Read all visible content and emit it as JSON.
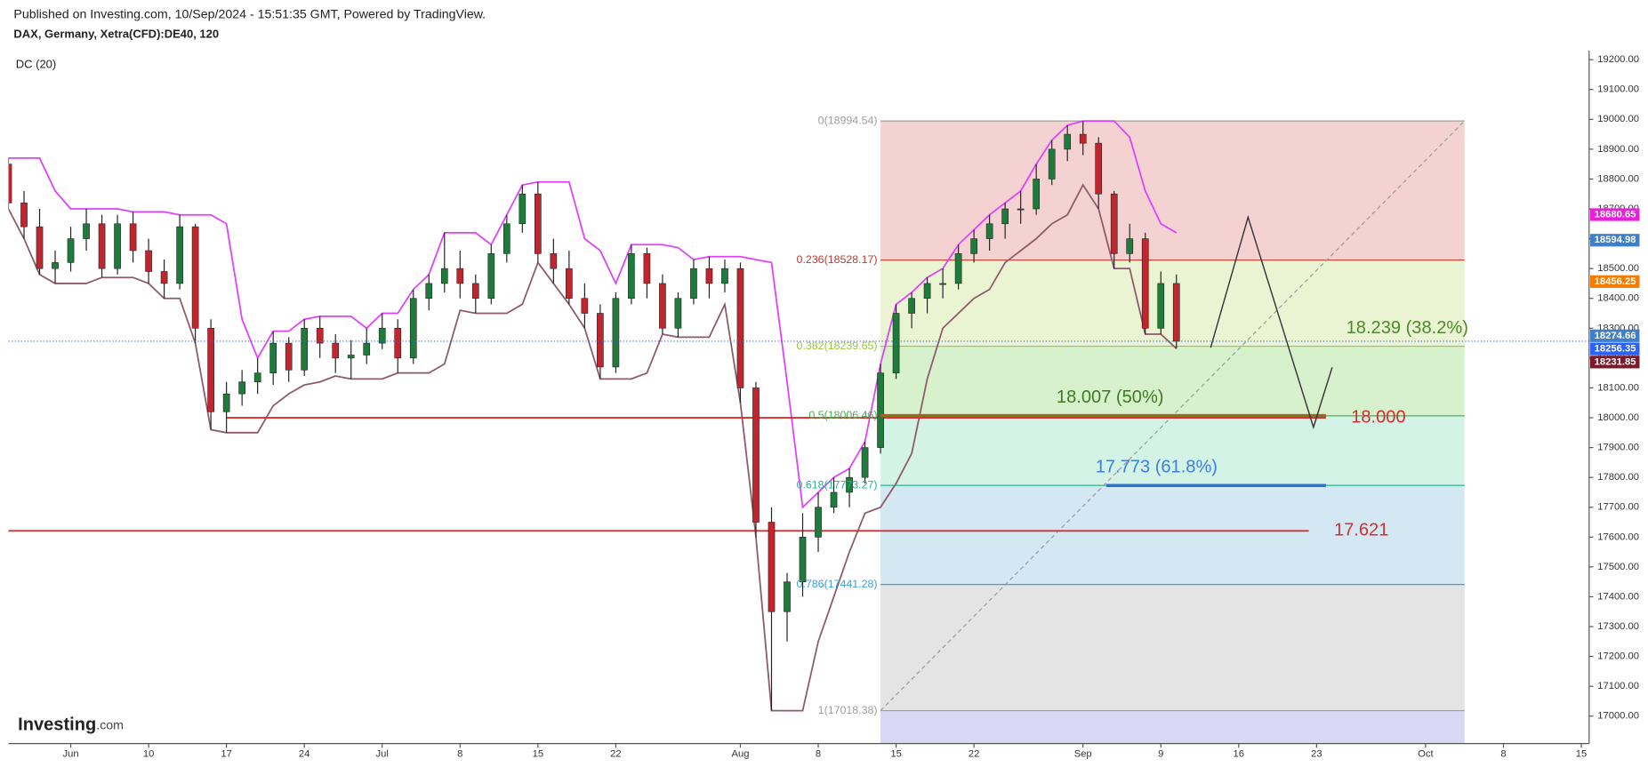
{
  "header": {
    "published": "Published on Investing.com, 10/Sep/2024 - 15:51:35 GMT, Powered by TradingView.",
    "symbol": "DAX, Germany, Xetra(CFD):DE40, 120",
    "indicator": "DC (20)"
  },
  "logo": {
    "main": "Investing",
    "suffix": ".com"
  },
  "chart_data": {
    "type": "candlestick",
    "x": [
      -4,
      -3,
      -2,
      -1,
      0,
      1,
      2,
      3,
      4,
      5,
      6,
      7,
      8,
      9,
      10,
      11,
      12,
      13,
      14,
      15,
      16,
      17,
      18,
      19,
      20,
      21,
      22,
      23,
      24,
      25,
      26,
      27,
      28,
      29,
      30,
      31,
      32,
      33,
      34,
      35,
      36,
      37,
      38,
      39,
      40,
      41,
      42,
      43,
      44,
      45,
      46,
      47,
      48,
      49,
      50,
      51,
      52,
      53,
      54,
      55,
      56,
      57,
      58,
      59,
      60,
      61,
      62,
      63,
      64,
      65,
      66,
      67,
      68,
      69,
      70,
      71
    ],
    "open": [
      18850,
      18720,
      18640,
      18500,
      18520,
      18600,
      18650,
      18500,
      18650,
      18560,
      18490,
      18450,
      18640,
      18300,
      18020,
      18080,
      18120,
      18150,
      18250,
      18160,
      18300,
      18250,
      18200,
      18210,
      18250,
      18300,
      18200,
      18400,
      18450,
      18500,
      18450,
      18400,
      18550,
      18650,
      18750,
      18550,
      18500,
      18400,
      18350,
      18170,
      18400,
      18550,
      18450,
      18300,
      18400,
      18500,
      18450,
      18500,
      18100,
      17650,
      17350,
      17450,
      17600,
      17700,
      17750,
      17800,
      17900,
      18150,
      18350,
      18400,
      18450,
      18450,
      18550,
      18600,
      18650,
      18700,
      18700,
      18800,
      18900,
      18950,
      18920,
      18750,
      18550,
      18600,
      18300,
      18450
    ],
    "high": [
      18870,
      18760,
      18700,
      18560,
      18640,
      18700,
      18680,
      18680,
      18690,
      18600,
      18530,
      18680,
      18650,
      18330,
      18120,
      18160,
      18200,
      18290,
      18270,
      18330,
      18340,
      18280,
      18260,
      18300,
      18350,
      18330,
      18430,
      18480,
      18620,
      18560,
      18480,
      18580,
      18680,
      18780,
      18790,
      18600,
      18560,
      18450,
      18380,
      18420,
      18580,
      18570,
      18480,
      18420,
      18530,
      18540,
      18530,
      18520,
      18120,
      17700,
      17480,
      17680,
      17750,
      17800,
      17830,
      17920,
      18180,
      18380,
      18420,
      18470,
      18500,
      18580,
      18630,
      18680,
      18720,
      18760,
      18850,
      18930,
      18980,
      18994.54,
      18940,
      18760,
      18650,
      18620,
      18490,
      18480
    ],
    "low": [
      18700,
      18600,
      18480,
      18450,
      18490,
      18560,
      18470,
      18480,
      18520,
      18450,
      18400,
      18430,
      18250,
      17960,
      17950,
      18040,
      18080,
      18110,
      18120,
      18140,
      18200,
      18150,
      18130,
      18180,
      18230,
      18150,
      18180,
      18360,
      18420,
      18400,
      18350,
      18380,
      18520,
      18620,
      18520,
      18450,
      18380,
      18300,
      18130,
      18150,
      18380,
      18400,
      18280,
      18270,
      18380,
      18400,
      18420,
      18050,
      17600,
      17018.38,
      17250,
      17400,
      17550,
      17680,
      17700,
      17780,
      17880,
      18130,
      18300,
      18350,
      18400,
      18430,
      18520,
      18560,
      18600,
      18650,
      18680,
      18780,
      18860,
      18880,
      18700,
      18500,
      18520,
      18280,
      18280,
      18231.85
    ],
    "close": [
      18720,
      18640,
      18500,
      18520,
      18600,
      18650,
      18500,
      18650,
      18560,
      18490,
      18450,
      18640,
      18300,
      18020,
      18080,
      18120,
      18150,
      18250,
      18160,
      18300,
      18250,
      18200,
      18210,
      18250,
      18300,
      18200,
      18400,
      18450,
      18500,
      18450,
      18400,
      18550,
      18650,
      18750,
      18550,
      18500,
      18400,
      18350,
      18170,
      18400,
      18550,
      18450,
      18300,
      18400,
      18500,
      18450,
      18500,
      18100,
      17650,
      17350,
      17450,
      17600,
      17700,
      17750,
      17800,
      17900,
      18150,
      18350,
      18400,
      18450,
      18450,
      18550,
      18600,
      18650,
      18700,
      18700,
      18800,
      18900,
      18950,
      18920,
      18750,
      18550,
      18600,
      18300,
      18450,
      18256.35
    ],
    "up_color": "#1e7b3c",
    "down_color": "#c0262d",
    "xlim": [
      -4,
      97.5
    ],
    "xticks": [
      {
        "value": 0,
        "label": "Jun"
      },
      {
        "value": 5,
        "label": "10"
      },
      {
        "value": 10,
        "label": "17"
      },
      {
        "value": 15,
        "label": "24"
      },
      {
        "value": 20,
        "label": "Jul"
      },
      {
        "value": 25,
        "label": "8"
      },
      {
        "value": 30,
        "label": "15"
      },
      {
        "value": 35,
        "label": "22"
      },
      {
        "value": 43,
        "label": "Aug"
      },
      {
        "value": 48,
        "label": "8"
      },
      {
        "value": 53,
        "label": "15"
      },
      {
        "value": 58,
        "label": "22"
      },
      {
        "value": 65,
        "label": "Sep"
      },
      {
        "value": 70,
        "label": "9"
      },
      {
        "value": 75,
        "label": "16"
      },
      {
        "value": 80,
        "label": "23"
      },
      {
        "value": 87,
        "label": "Oct"
      },
      {
        "value": 92,
        "label": "8"
      },
      {
        "value": 97,
        "label": "15"
      }
    ],
    "ylim": [
      16908,
      19231
    ],
    "yticks": [
      {
        "value": 17000,
        "label": "17000.00"
      },
      {
        "value": 17100,
        "label": "17100.00"
      },
      {
        "value": 17200,
        "label": "17200.00"
      },
      {
        "value": 17300,
        "label": "17300.00"
      },
      {
        "value": 17400,
        "label": "17400.00"
      },
      {
        "value": 17500,
        "label": "17500.00"
      },
      {
        "value": 17600,
        "label": "17600.00"
      },
      {
        "value": 17700,
        "label": "17700.00"
      },
      {
        "value": 17800,
        "label": "17800.00"
      },
      {
        "value": 17900,
        "label": "17900.00"
      },
      {
        "value": 18000,
        "label": "18000.00"
      },
      {
        "value": 18100,
        "label": "18100.00"
      },
      {
        "value": 18200,
        "label": "18200.00"
      },
      {
        "value": 18300,
        "label": "18300.00"
      },
      {
        "value": 18400,
        "label": "18400.00"
      },
      {
        "value": 18500,
        "label": "18500.00"
      },
      {
        "value": 18600,
        "label": "18600.00"
      },
      {
        "value": 18700,
        "label": "18700.00"
      },
      {
        "value": 18800,
        "label": "18800.00"
      },
      {
        "value": 18900,
        "label": "18900.00"
      },
      {
        "value": 19000,
        "label": "19000.00"
      },
      {
        "value": 19100,
        "label": "19100.00"
      },
      {
        "value": 19200,
        "label": "19200.00"
      }
    ],
    "channel": {
      "upper": [
        18870,
        18870,
        18870,
        18760,
        18700,
        18700,
        18700,
        18700,
        18690,
        18690,
        18690,
        18680,
        18680,
        18680,
        18650,
        18330,
        18200,
        18290,
        18290,
        18330,
        18340,
        18340,
        18340,
        18300,
        18350,
        18350,
        18430,
        18480,
        18620,
        18620,
        18620,
        18580,
        18680,
        18780,
        18790,
        18790,
        18790,
        18600,
        18560,
        18450,
        18580,
        18580,
        18580,
        18570,
        18530,
        18540,
        18540,
        18540,
        18530,
        18520,
        18120,
        17700,
        17750,
        17800,
        17830,
        17920,
        18180,
        18380,
        18420,
        18470,
        18500,
        18580,
        18630,
        18680,
        18720,
        18760,
        18850,
        18930,
        18980,
        18994.54,
        18994.54,
        18994.54,
        18940,
        18760,
        18650,
        18620
      ],
      "lower": [
        18700,
        18600,
        18480,
        18450,
        18450,
        18450,
        18470,
        18470,
        18470,
        18450,
        18400,
        18400,
        18250,
        17960,
        17950,
        17950,
        17950,
        18040,
        18080,
        18110,
        18120,
        18140,
        18130,
        18130,
        18130,
        18150,
        18150,
        18150,
        18180,
        18360,
        18350,
        18350,
        18350,
        18380,
        18520,
        18450,
        18380,
        18300,
        18130,
        18130,
        18130,
        18150,
        18280,
        18270,
        18270,
        18270,
        18380,
        18050,
        17600,
        17018.38,
        17018.38,
        17018.38,
        17250,
        17400,
        17550,
        17680,
        17700,
        17780,
        17880,
        18130,
        18300,
        18350,
        18400,
        18430,
        18520,
        18560,
        18600,
        18650,
        18680,
        18780,
        18700,
        18500,
        18500,
        18280,
        18280,
        18231.85
      ],
      "upper_color": "#e040fb",
      "lower_color": "#8d5a6a"
    },
    "fib": {
      "x": [
        52,
        89.5
      ],
      "levels": [
        {
          "value": 18994.54,
          "label": "0(18994.54)",
          "color": "#9e9e9e",
          "fill": "#f4d2d2"
        },
        {
          "value": 18528.17,
          "label": "0.236(18528.17)",
          "color": "#c0392b",
          "fill": "#eaf4d3"
        },
        {
          "value": 18239.65,
          "label": "0.382(18239.65)",
          "color": "#9bc53d",
          "fill": "#d7f1cd"
        },
        {
          "value": 18006.46,
          "label": "0.5(18006.46)",
          "color": "#4caf50",
          "fill": "#d3f3e6"
        },
        {
          "value": 17773.27,
          "label": "0.618(17773.27)",
          "color": "#26b58f",
          "fill": "#d4e8f3"
        },
        {
          "value": 17441.28,
          "label": "0.786(17441.28)",
          "color": "#3d9fd6",
          "fill": "#e4e4e4"
        },
        {
          "value": 17018.38,
          "label": "1(17018.38)",
          "color": "#9e9e9e",
          "fill": "#d8d8f4"
        }
      ]
    },
    "hlines": [
      {
        "value": 18000,
        "label": "18.000",
        "x": [
          10,
          80.6
        ],
        "color": "#d32f2f"
      },
      {
        "value": 17621,
        "label": "17.621",
        "x": [
          -4,
          79.5
        ],
        "color": "#d32f2f"
      }
    ],
    "notes": [
      {
        "value": 18239,
        "label": "18.239 (38.2%)",
        "x": 81.9,
        "color": "#4a8a2a"
      },
      {
        "value": 18007,
        "label": "18.007 (50%)",
        "x": 63.3,
        "color": "#3d7a22",
        "line": [
          52,
          80.6
        ],
        "line_color": "#8b6b2e"
      },
      {
        "value": 17773,
        "label": "17.773 (61.8%)",
        "x": 65.8,
        "color": "#3d7ee0",
        "line": [
          66.5,
          80.6
        ],
        "line_color": "#2f6fd8"
      }
    ],
    "projection": {
      "x": [
        73.2,
        75.6,
        79.8,
        81.0
      ],
      "y": [
        18235,
        18672,
        17968,
        18169
      ],
      "color": "#333333"
    },
    "price_labels": [
      {
        "value": 18680.65,
        "color": "#e91edb"
      },
      {
        "value": 18594.98,
        "color": "#3d7fc9"
      },
      {
        "value": 18456.25,
        "color": "#f57c00"
      },
      {
        "value": 18274.66,
        "color": "#3d7fc9"
      },
      {
        "value": 18231.85,
        "color": "#7b1a2a"
      }
    ],
    "last_price": {
      "value": 18256.35,
      "color": "#2962ff"
    }
  }
}
